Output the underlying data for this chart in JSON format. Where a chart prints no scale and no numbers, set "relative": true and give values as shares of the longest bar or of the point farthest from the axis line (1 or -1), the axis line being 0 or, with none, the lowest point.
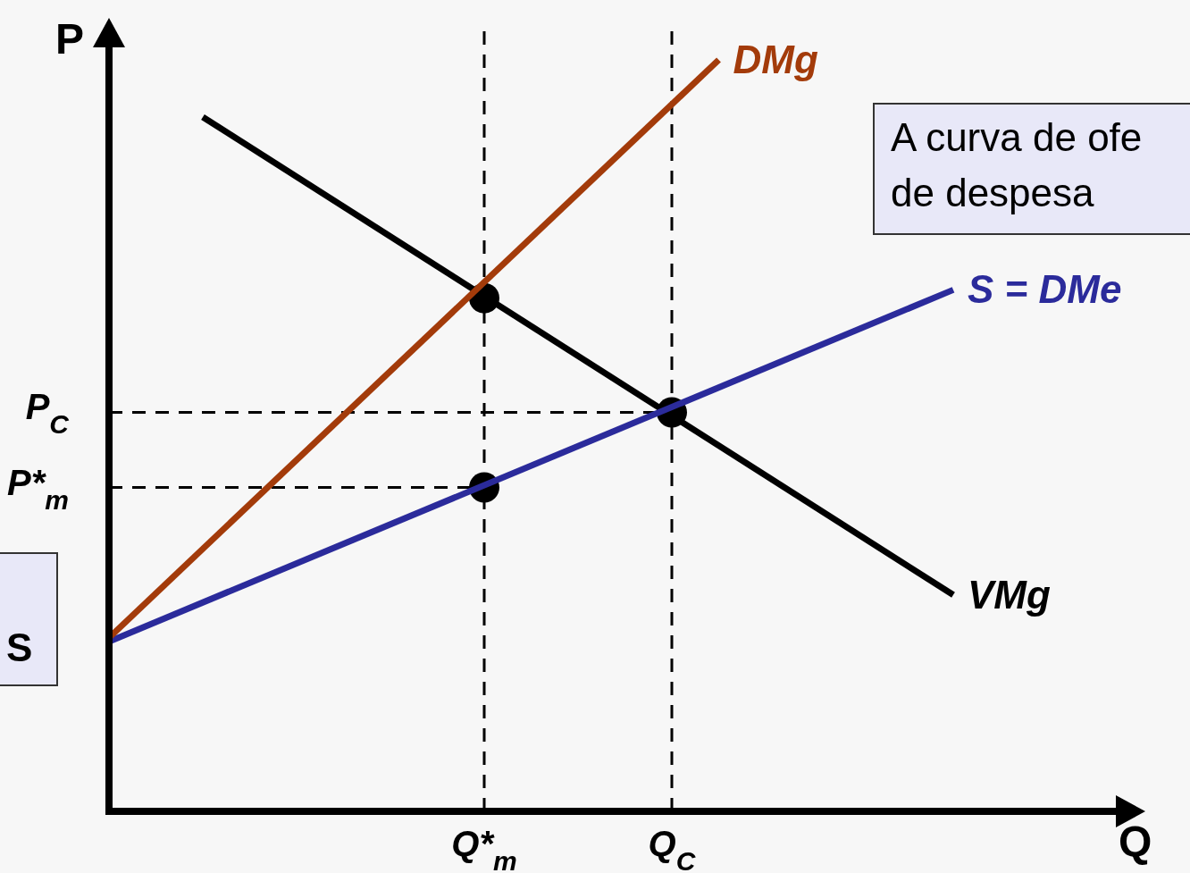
{
  "chart_data": {
    "type": "line",
    "xlabel": "Q",
    "ylabel": "P",
    "relative": true,
    "grid": false,
    "legend": false,
    "line_style": "solid",
    "marker": "none",
    "categories": [
      null,
      null,
      null,
      null,
      null,
      null,
      null,
      null,
      "Q*$_{m}$",
      null,
      null,
      null,
      "Q$_{C}$",
      null,
      null,
      null,
      null,
      null,
      null,
      null,
      null,
      null,
      null
    ],
    "annotations": [
      "A curva de ofe\nde despesa",
      "S"
    ],
    "ref_lines": [
      {
        "axis": "y",
        "value": 0.531,
        "label": "P$_{C}$",
        "line_style": "dashed",
        "color": "#000000"
      },
      {
        "axis": "y",
        "value": 0.431,
        "label": "P*$_{m}$",
        "line_style": "dashed",
        "color": "#000000"
      },
      {
        "axis": "x",
        "value": "Q*$_{m}$",
        "line_style": "dashed",
        "color": "#000000"
      },
      {
        "axis": "x",
        "value": "Q$_{C}$",
        "line_style": "dashed",
        "color": "#000000"
      }
    ],
    "series": [
      {
        "name": "DMg",
        "color": "#a33b0a",
        "values": [
          0.231,
          null,
          null,
          null,
          null,
          null,
          null,
          null,
          null,
          null,
          null,
          null,
          null,
          1,
          null,
          null,
          null,
          null,
          null,
          null,
          null,
          null,
          null
        ]
      },
      {
        "name": "S = DMe",
        "color": "#2b2b9b",
        "values": [
          0.226,
          null,
          null,
          null,
          null,
          null,
          null,
          null,
          null,
          null,
          null,
          null,
          null,
          null,
          null,
          null,
          null,
          null,
          0.694,
          null,
          null,
          null,
          null
        ]
      },
      {
        "name": "VMg",
        "color": "#000000",
        "values": [
          null,
          null,
          0.924,
          null,
          null,
          null,
          null,
          null,
          null,
          null,
          null,
          null,
          null,
          null,
          null,
          null,
          null,
          null,
          0.288,
          null,
          null,
          null,
          null
        ]
      },
      {
        "type": "scatter",
        "color": "#000000",
        "marker": "circle",
        "x": [
          "Q*$_{m}$",
          "Q$_{C}$",
          "Q*$_{m}$"
        ],
        "values": [
          0.683,
          0.531,
          0.431
        ]
      }
    ]
  }
}
